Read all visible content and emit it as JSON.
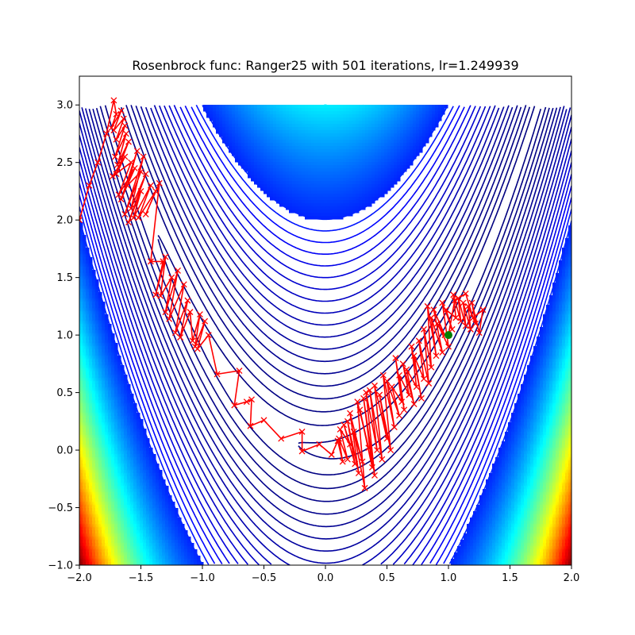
{
  "chart_data": {
    "type": "line",
    "title": "Rosenbrock func: Ranger25 with 501 iterations, lr=1.249939",
    "xlabel": "",
    "ylabel": "",
    "xlim": [
      -2.0,
      2.0
    ],
    "ylim": [
      -1.0,
      3.25
    ],
    "grid": false,
    "x_ticks": [
      "−2.0",
      "−1.5",
      "−1.0",
      "−0.5",
      "0.0",
      "0.5",
      "1.0",
      "1.5",
      "2.0"
    ],
    "x_tick_values": [
      -2.0,
      -1.5,
      -1.0,
      -0.5,
      0.0,
      0.5,
      1.0,
      1.5,
      2.0
    ],
    "y_ticks": [
      "−1.0",
      "−0.5",
      "0.0",
      "0.5",
      "1.0",
      "1.5",
      "2.0",
      "2.5",
      "3.0"
    ],
    "y_tick_values": [
      -1.0,
      -0.5,
      0.0,
      0.5,
      1.0,
      1.5,
      2.0,
      2.5,
      3.0
    ],
    "contour": {
      "function": "rosenbrock",
      "x_range": [
        -2.0,
        2.0
      ],
      "y_range": [
        -1.0,
        3.0
      ],
      "colormap": "jet"
    },
    "series": [
      {
        "values": [
          [
            -2.0,
            2.0
          ],
          [
            -1.92,
            2.3
          ],
          [
            -1.85,
            2.5
          ],
          [
            -1.78,
            2.75
          ],
          [
            -1.72,
            3.04
          ],
          [
            -1.7,
            2.92
          ],
          [
            -1.74,
            2.8
          ],
          [
            -1.66,
            2.95
          ],
          [
            -1.72,
            2.78
          ],
          [
            -1.64,
            2.88
          ],
          [
            -1.7,
            2.7
          ],
          [
            -1.63,
            2.82
          ],
          [
            -1.71,
            2.55
          ],
          [
            -1.62,
            2.75
          ],
          [
            -1.69,
            2.48
          ],
          [
            -1.6,
            2.68
          ],
          [
            -1.7,
            2.4
          ],
          [
            -1.63,
            2.55
          ],
          [
            -1.73,
            2.38
          ],
          [
            -1.58,
            2.5
          ],
          [
            -1.68,
            2.22
          ],
          [
            -1.55,
            2.45
          ],
          [
            -1.66,
            2.18
          ],
          [
            -1.53,
            2.6
          ],
          [
            -1.61,
            2.3
          ],
          [
            -1.5,
            2.42
          ],
          [
            -1.63,
            2.05
          ],
          [
            -1.48,
            2.55
          ],
          [
            -1.58,
            2.1
          ],
          [
            -1.46,
            2.4
          ],
          [
            -1.6,
            1.98
          ],
          [
            -1.5,
            2.25
          ],
          [
            -1.56,
            2.02
          ],
          [
            -1.42,
            2.3
          ],
          [
            -1.52,
            2.02
          ],
          [
            -1.38,
            2.25
          ],
          [
            -1.46,
            2.05
          ],
          [
            -1.35,
            2.32
          ],
          [
            -1.42,
            1.64
          ],
          [
            -1.32,
            1.64
          ],
          [
            -1.38,
            1.35
          ],
          [
            -1.3,
            1.68
          ],
          [
            -1.34,
            1.34
          ],
          [
            -1.25,
            1.5
          ],
          [
            -1.3,
            1.2
          ],
          [
            -1.2,
            1.56
          ],
          [
            -1.27,
            1.14
          ],
          [
            -1.15,
            1.44
          ],
          [
            -1.22,
            1.02
          ],
          [
            -1.12,
            1.3
          ],
          [
            -1.18,
            0.98
          ],
          [
            -1.1,
            1.2
          ],
          [
            -1.08,
            0.95
          ],
          [
            -1.02,
            1.18
          ],
          [
            -1.06,
            0.9
          ],
          [
            -0.98,
            1.12
          ],
          [
            -1.04,
            0.88
          ],
          [
            -0.95,
            1.0
          ],
          [
            -0.88,
            0.66
          ],
          [
            -0.7,
            0.69
          ],
          [
            -0.74,
            0.39
          ],
          [
            -0.64,
            0.42
          ],
          [
            -0.6,
            0.44
          ],
          [
            -0.61,
            0.21
          ],
          [
            -0.5,
            0.26
          ],
          [
            -0.36,
            0.1
          ],
          [
            -0.19,
            0.16
          ],
          [
            -0.19,
            -0.01
          ],
          [
            -0.05,
            0.05
          ],
          [
            0.05,
            -0.04
          ],
          [
            0.1,
            0.08
          ],
          [
            0.14,
            -0.1
          ],
          [
            0.11,
            0.1
          ],
          [
            0.18,
            -0.08
          ],
          [
            0.12,
            0.18
          ],
          [
            0.2,
            0.05
          ],
          [
            0.15,
            0.22
          ],
          [
            0.24,
            -0.12
          ],
          [
            0.18,
            0.25
          ],
          [
            0.27,
            -0.2
          ],
          [
            0.2,
            0.32
          ],
          [
            0.3,
            -0.1
          ],
          [
            0.23,
            0.16
          ],
          [
            0.32,
            -0.33
          ],
          [
            0.26,
            0.42
          ],
          [
            0.35,
            0.02
          ],
          [
            0.28,
            0.35
          ],
          [
            0.38,
            -0.15
          ],
          [
            0.31,
            0.45
          ],
          [
            0.4,
            -0.22
          ],
          [
            0.33,
            0.5
          ],
          [
            0.42,
            0.0
          ],
          [
            0.36,
            0.52
          ],
          [
            0.46,
            -0.08
          ],
          [
            0.4,
            0.56
          ],
          [
            0.5,
            0.1
          ],
          [
            0.44,
            0.48
          ],
          [
            0.53,
            0.0
          ],
          [
            0.47,
            0.65
          ],
          [
            0.56,
            0.2
          ],
          [
            0.5,
            0.6
          ],
          [
            0.6,
            0.3
          ],
          [
            0.54,
            0.55
          ],
          [
            0.62,
            0.42
          ],
          [
            0.57,
            0.8
          ],
          [
            0.64,
            0.35
          ],
          [
            0.6,
            0.65
          ],
          [
            0.68,
            0.48
          ],
          [
            0.63,
            0.75
          ],
          [
            0.72,
            0.4
          ],
          [
            0.66,
            0.7
          ],
          [
            0.74,
            0.55
          ],
          [
            0.7,
            0.9
          ],
          [
            0.78,
            0.45
          ],
          [
            0.72,
            0.82
          ],
          [
            0.8,
            0.62
          ],
          [
            0.76,
            0.95
          ],
          [
            0.84,
            0.58
          ],
          [
            0.8,
            1.05
          ],
          [
            0.86,
            0.72
          ],
          [
            0.83,
            1.25
          ],
          [
            0.9,
            0.82
          ],
          [
            0.86,
            1.15
          ],
          [
            0.95,
            0.85
          ],
          [
            0.88,
            1.22
          ],
          [
            0.97,
            1.0
          ],
          [
            0.91,
            1.1
          ],
          [
            1.0,
            0.9
          ],
          [
            0.95,
            1.28
          ],
          [
            1.03,
            1.05
          ],
          [
            0.98,
            1.22
          ],
          [
            1.06,
            1.15
          ],
          [
            1.04,
            1.35
          ],
          [
            1.1,
            1.12
          ],
          [
            1.08,
            1.32
          ],
          [
            1.14,
            1.08
          ],
          [
            1.12,
            1.28
          ],
          [
            1.18,
            1.05
          ],
          [
            1.16,
            1.25
          ],
          [
            1.22,
            1.1
          ],
          [
            1.19,
            1.28
          ],
          [
            1.25,
            1.02
          ],
          [
            1.28,
            1.22
          ],
          [
            1.2,
            1.15
          ],
          [
            1.14,
            1.36
          ],
          [
            1.05,
            1.3
          ],
          [
            1.0,
            1.0
          ]
        ]
      }
    ],
    "optimum": [
      1.0,
      1.0
    ],
    "colors": {
      "trajectory": "#ff0000",
      "optimum": "#008000"
    }
  }
}
